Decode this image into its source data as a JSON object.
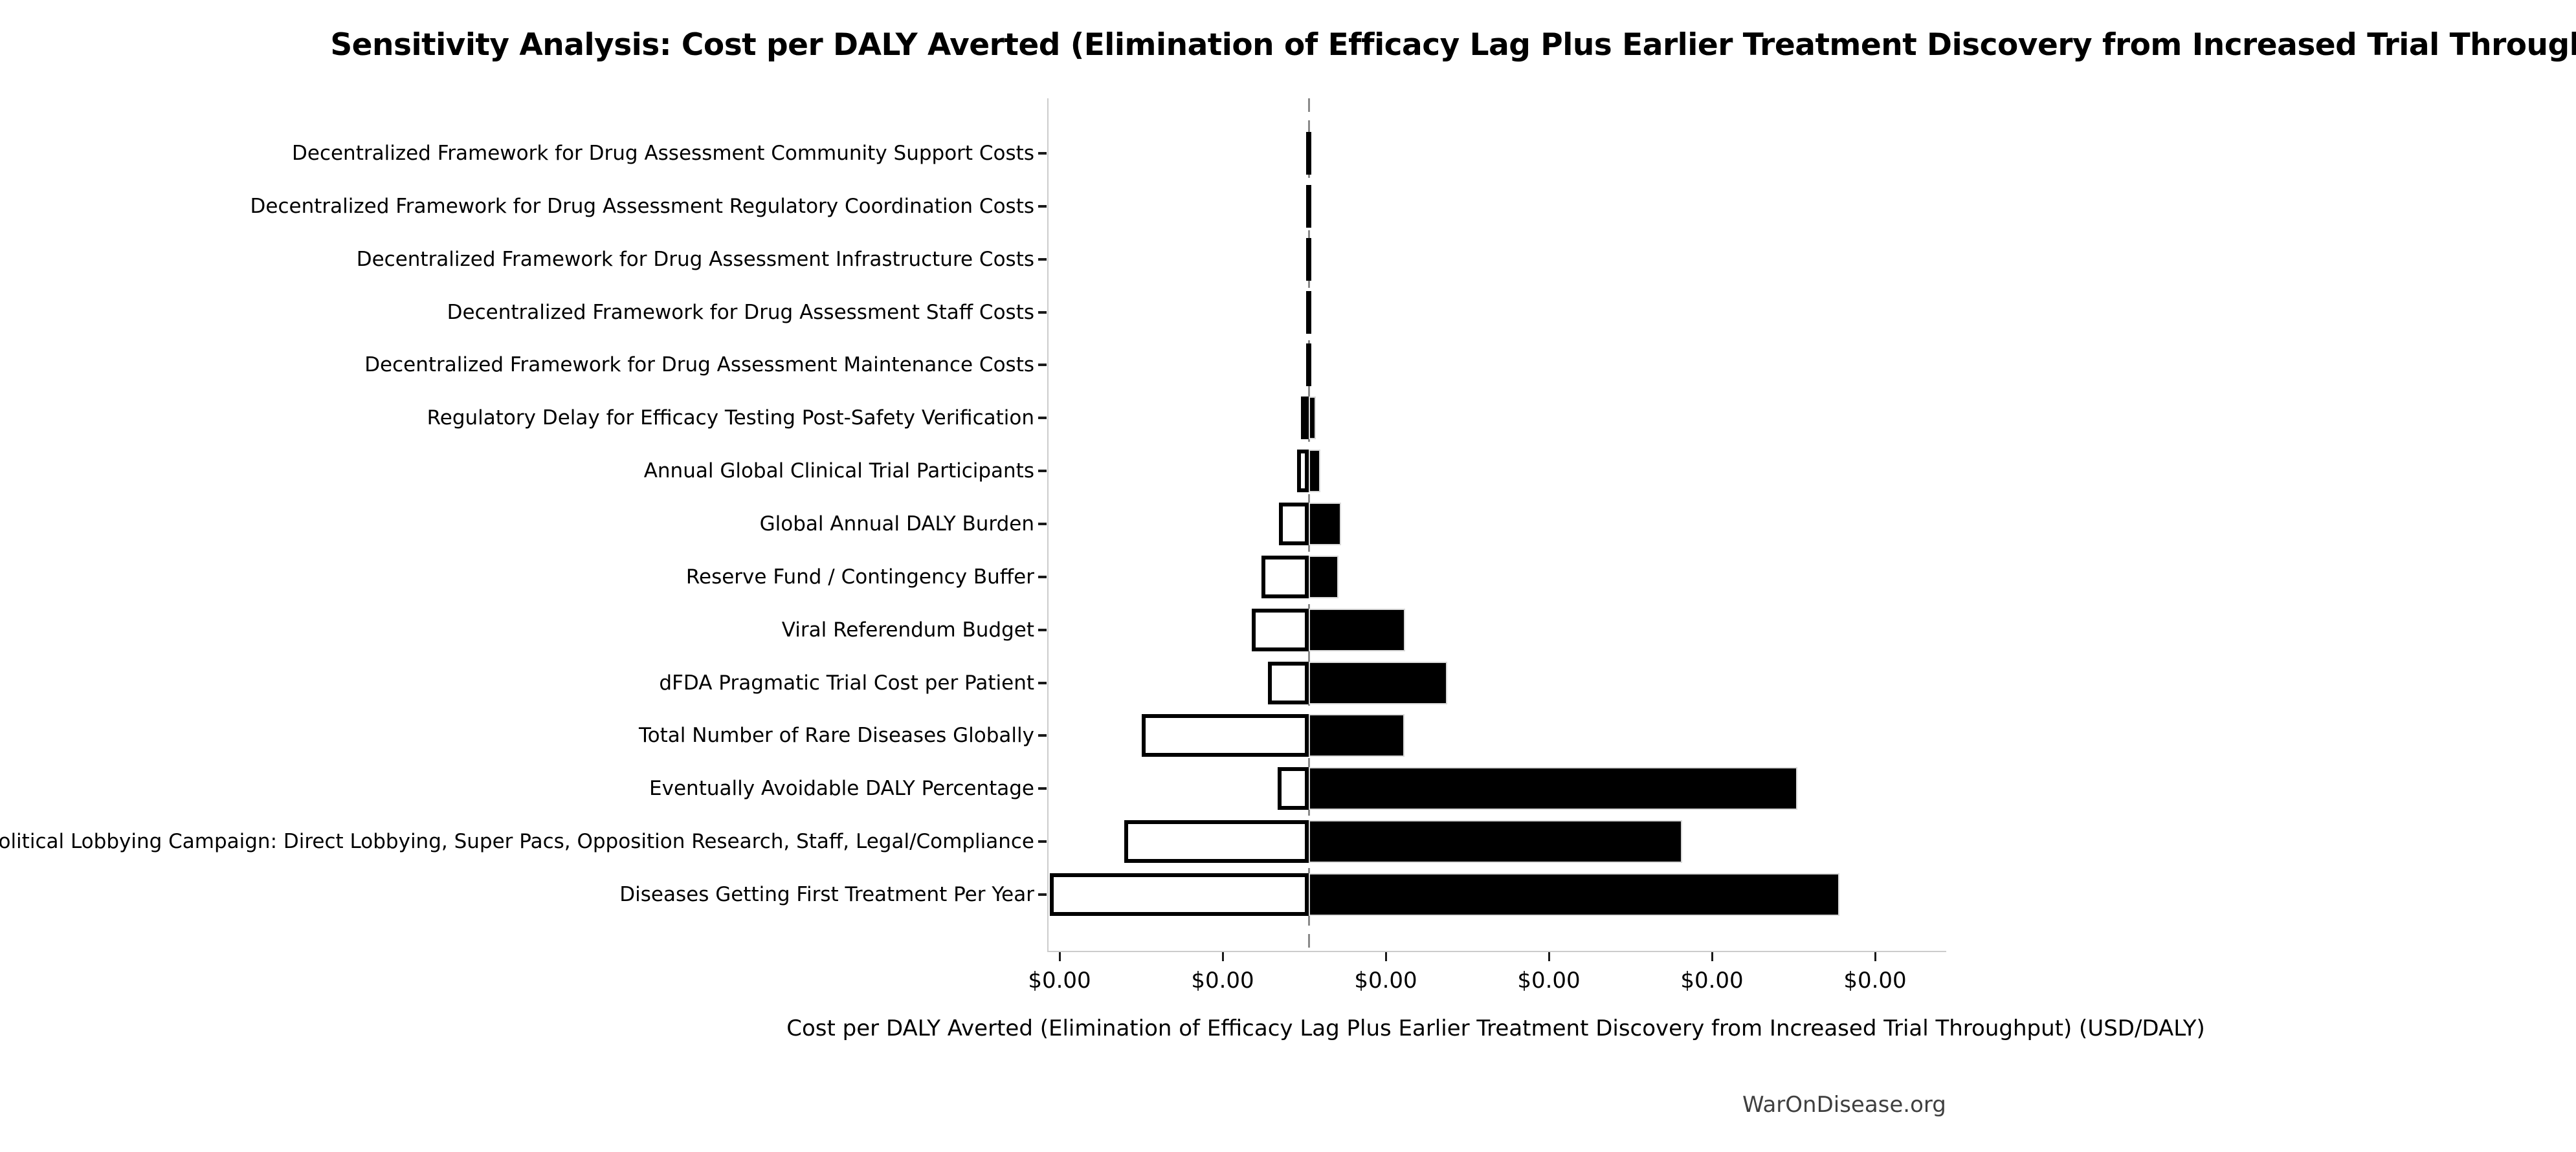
{
  "watermark": {
    "text": "WarOnDisease.org"
  },
  "chart_data": {
    "type": "bar",
    "subtype": "tornado-sensitivity",
    "orientation": "horizontal",
    "title": "Sensitivity Analysis: Cost per DALY Averted (Elimination of Efficacy Lag Plus Earlier Treatment Discovery from Increased Trial Throughput)",
    "xlabel": "Cost per DALY Averted (Elimination of Efficacy Lag Plus Earlier Treatment Discovery from Increased Trial Throughput) (USD/DALY)",
    "grid": false,
    "legend": null,
    "x_axis": {
      "tick_labels": [
        "$0.00",
        "$0.00",
        "$0.00",
        "$0.00",
        "$0.00",
        "$0.00"
      ],
      "tick_positions_units": [
        0,
        1,
        2,
        3,
        4,
        5
      ],
      "range_units": [
        -0.075,
        5.429
      ],
      "baseline_unit": 1.52,
      "note": "All x tick labels render as $0.00 (values below display precision); bar extents are measured in tick-spacing units from the first tick; dashed gray line marks the base-case value"
    },
    "bars": [
      {
        "label": "Decentralized Framework for Drug Assessment Community Support Costs",
        "low": 1.504,
        "high": 1.536
      },
      {
        "label": "Decentralized Framework for Drug Assessment Regulatory Coordination Costs",
        "low": 1.504,
        "high": 1.536
      },
      {
        "label": "Decentralized Framework for Drug Assessment Infrastructure Costs",
        "low": 1.504,
        "high": 1.536
      },
      {
        "label": "Decentralized Framework for Drug Assessment Staff Costs",
        "low": 1.504,
        "high": 1.536
      },
      {
        "label": "Decentralized Framework for Drug Assessment Maintenance Costs",
        "low": 1.504,
        "high": 1.536
      },
      {
        "label": "Regulatory Delay for Efficacy Testing Post-Safety Verification",
        "low": 1.472,
        "high": 1.563
      },
      {
        "label": "Annual Global Clinical Trial Participants",
        "low": 1.449,
        "high": 1.591
      },
      {
        "label": "Global Annual DALY Burden",
        "low": 1.337,
        "high": 1.718
      },
      {
        "label": "Reserve Fund / Contingency Buffer",
        "low": 1.23,
        "high": 1.702
      },
      {
        "label": "Viral Referendum Budget",
        "low": 1.171,
        "high": 2.111
      },
      {
        "label": "dFDA Pragmatic Trial Cost per Patient",
        "low": 1.27,
        "high": 2.369
      },
      {
        "label": "Total Number of Rare Diseases Globally",
        "low": 0.496,
        "high": 2.107
      },
      {
        "label": "Eventually Avoidable DALY Percentage",
        "low": 1.33,
        "high": 4.516
      },
      {
        "label": "Political Lobbying Campaign: Direct Lobbying, Super Pacs, Opposition Research, Staff, Legal/Compliance",
        "low": 0.389,
        "high": 3.81
      },
      {
        "label": "Diseases Getting First Treatment Per Year",
        "low": -0.067,
        "high": 4.774
      }
    ],
    "colors": {
      "bar_high_fill": "#000000",
      "bar_low_fill": "#ffffff",
      "bar_low_border": "#000000",
      "bar_high_edge": "#d9d9d9",
      "baseline_dash": "#8a8a8a",
      "spine": "#cccccc",
      "tick": "#1a1a1a",
      "watermark": "#3f3f3f",
      "background": "#ffffff"
    }
  }
}
